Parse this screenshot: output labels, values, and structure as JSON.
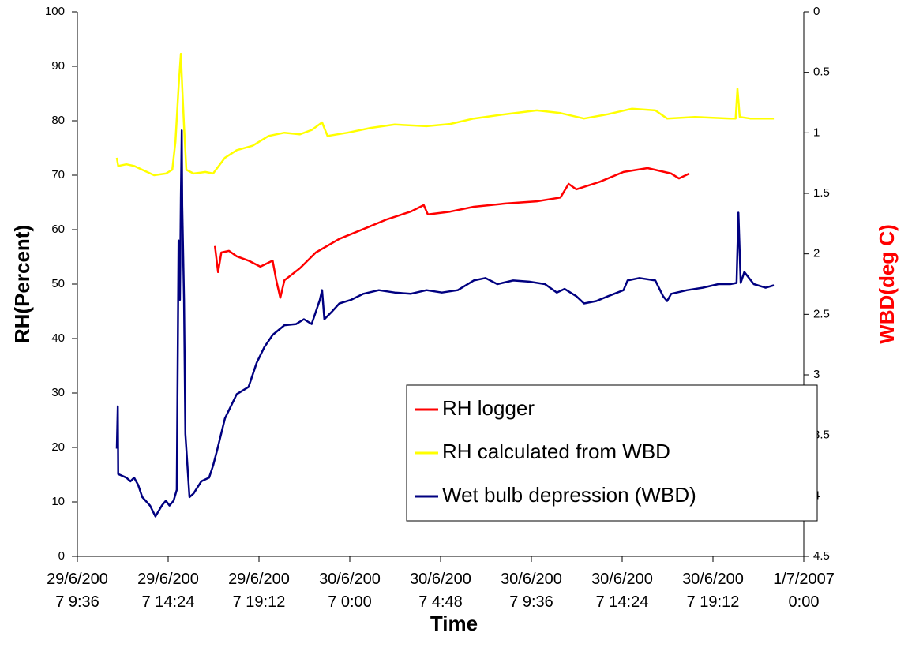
{
  "chart_data": {
    "type": "line",
    "x_label": "Time",
    "y_label": "RH(Percent)",
    "y2_label": "WBD(deg C)",
    "y2_label_color": "#ff0000",
    "ylim": [
      0,
      100
    ],
    "yticks": [
      0,
      10,
      20,
      30,
      40,
      50,
      60,
      70,
      80,
      90,
      100
    ],
    "y2lim": [
      0,
      4.5
    ],
    "y2_reversed": true,
    "y2ticks": [
      0,
      0.5,
      1,
      1.5,
      2,
      2.5,
      3,
      3.5,
      4,
      4.5
    ],
    "xlim": [
      39262.4,
      39264.0
    ],
    "xticks": [
      {
        "value": 39262.4,
        "label": "29/6/2007 9:36"
      },
      {
        "value": 39262.6,
        "label": "29/6/2007 14:24"
      },
      {
        "value": 39262.8,
        "label": "29/6/2007 19:12"
      },
      {
        "value": 39263.0,
        "label": "30/6/2007 0:00"
      },
      {
        "value": 39263.2,
        "label": "30/6/2007 4:48"
      },
      {
        "value": 39263.4,
        "label": "30/6/2007 9:36"
      },
      {
        "value": 39263.6,
        "label": "30/6/2007 14:24"
      },
      {
        "value": 39263.8,
        "label": "30/6/2007 19:12"
      },
      {
        "value": 39264.0,
        "label": "1/7/2007 0:00"
      }
    ],
    "legend_position": "lower right",
    "series": [
      {
        "name": "RH logger",
        "color": "#ff0000",
        "axis": "y",
        "x": [
          39262.703,
          39262.71,
          39262.717,
          39262.734,
          39262.751,
          39262.777,
          39262.803,
          39262.83,
          39262.838,
          39262.847,
          39262.856,
          39262.89,
          39262.925,
          39262.977,
          39263.03,
          39263.082,
          39263.134,
          39263.163,
          39263.172,
          39263.221,
          39263.273,
          39263.343,
          39263.412,
          39263.464,
          39263.482,
          39263.499,
          39263.551,
          39263.603,
          39263.656,
          39263.708,
          39263.725,
          39263.748
        ],
        "values": [
          57.0,
          52.2,
          55.8,
          56.1,
          55.1,
          54.3,
          53.2,
          54.3,
          50.7,
          47.5,
          50.7,
          52.9,
          55.8,
          58.3,
          60.1,
          61.9,
          63.3,
          64.5,
          62.8,
          63.3,
          64.2,
          64.8,
          65.2,
          65.9,
          68.4,
          67.4,
          68.8,
          70.6,
          71.3,
          70.3,
          69.4,
          70.3
        ]
      },
      {
        "name": "RH calculated from WBD",
        "color": "#ffff00",
        "axis": "y",
        "x": [
          39262.487,
          39262.49,
          39262.508,
          39262.525,
          39262.543,
          39262.569,
          39262.595,
          39262.609,
          39262.616,
          39262.623,
          39262.628,
          39262.631,
          39262.635,
          39262.64,
          39262.656,
          39262.682,
          39262.699,
          39262.725,
          39262.751,
          39262.786,
          39262.821,
          39262.856,
          39262.89,
          39262.916,
          39262.939,
          39262.951,
          39262.995,
          39263.047,
          39263.099,
          39263.169,
          39263.221,
          39263.273,
          39263.343,
          39263.412,
          39263.464,
          39263.516,
          39263.569,
          39263.621,
          39263.673,
          39263.699,
          39263.76,
          39263.838,
          39263.85,
          39263.854,
          39263.859,
          39263.882,
          39263.934
        ],
        "values": [
          73.2,
          71.7,
          72.0,
          71.7,
          71.0,
          70.0,
          70.3,
          71.0,
          76.1,
          86.2,
          92.3,
          86.2,
          79.0,
          71.0,
          70.3,
          70.6,
          70.3,
          73.2,
          74.6,
          75.4,
          77.2,
          77.8,
          77.5,
          78.3,
          79.7,
          77.2,
          77.8,
          78.7,
          79.3,
          79.0,
          79.4,
          80.4,
          81.2,
          81.9,
          81.4,
          80.4,
          81.2,
          82.2,
          81.9,
          80.4,
          80.7,
          80.4,
          80.4,
          85.9,
          80.7,
          80.4,
          80.4
        ]
      },
      {
        "name": "Wet bulb depression (WBD)",
        "color": "#000080",
        "axis": "y2",
        "x": [
          39262.487,
          39262.489,
          39262.49,
          39262.496,
          39262.508,
          39262.517,
          39262.525,
          39262.534,
          39262.543,
          39262.56,
          39262.572,
          39262.586,
          39262.595,
          39262.603,
          39262.612,
          39262.619,
          39262.623,
          39262.626,
          39262.628,
          39262.63,
          39262.631,
          39262.635,
          39262.638,
          39262.647,
          39262.656,
          39262.673,
          39262.69,
          39262.699,
          39262.708,
          39262.725,
          39262.751,
          39262.777,
          39262.795,
          39262.812,
          39262.83,
          39262.856,
          39262.882,
          39262.899,
          39262.916,
          39262.934,
          39262.939,
          39262.944,
          39262.96,
          39262.977,
          39263.003,
          39263.03,
          39263.064,
          39263.099,
          39263.134,
          39263.169,
          39263.203,
          39263.238,
          39263.273,
          39263.299,
          39263.325,
          39263.36,
          39263.395,
          39263.43,
          39263.456,
          39263.473,
          39263.499,
          39263.516,
          39263.543,
          39263.569,
          39263.603,
          39263.612,
          39263.638,
          39263.673,
          39263.69,
          39263.699,
          39263.708,
          39263.743,
          39263.777,
          39263.812,
          39263.838,
          39263.852,
          39263.856,
          39263.861,
          39263.869,
          39263.89,
          39263.916,
          39263.934
        ],
        "values": [
          3.61,
          3.26,
          3.82,
          3.83,
          3.85,
          3.88,
          3.85,
          3.91,
          4.01,
          4.08,
          4.17,
          4.08,
          4.04,
          4.08,
          4.04,
          3.95,
          1.89,
          2.38,
          1.53,
          0.98,
          1.6,
          2.38,
          3.49,
          4.01,
          3.98,
          3.88,
          3.85,
          3.75,
          3.62,
          3.36,
          3.16,
          3.1,
          2.9,
          2.77,
          2.67,
          2.59,
          2.58,
          2.54,
          2.58,
          2.38,
          2.3,
          2.54,
          2.48,
          2.41,
          2.38,
          2.33,
          2.3,
          2.32,
          2.33,
          2.3,
          2.32,
          2.3,
          2.22,
          2.2,
          2.25,
          2.22,
          2.23,
          2.25,
          2.32,
          2.29,
          2.35,
          2.41,
          2.39,
          2.35,
          2.3,
          2.22,
          2.2,
          2.22,
          2.35,
          2.39,
          2.33,
          2.3,
          2.28,
          2.25,
          2.25,
          2.24,
          1.66,
          2.24,
          2.15,
          2.25,
          2.28,
          2.26
        ]
      }
    ]
  }
}
